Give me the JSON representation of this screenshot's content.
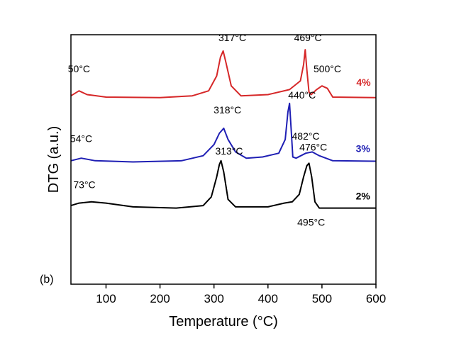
{
  "chart_data": {
    "type": "line",
    "xlabel": "Temperature (°C)",
    "ylabel": "DTG (a.u.)",
    "panel_label": "(b)",
    "xlim": [
      35,
      600
    ],
    "ylim": [
      0,
      10
    ],
    "x_ticks": [
      100,
      200,
      300,
      400,
      500,
      600
    ],
    "y_ticks_shown": false,
    "grid": false,
    "legend": "none",
    "series": [
      {
        "name": "4%",
        "color": "#d62728",
        "points": [
          [
            35,
            7.55
          ],
          [
            50,
            7.75
          ],
          [
            65,
            7.6
          ],
          [
            100,
            7.5
          ],
          [
            200,
            7.48
          ],
          [
            260,
            7.55
          ],
          [
            290,
            7.75
          ],
          [
            305,
            8.35
          ],
          [
            312,
            9.1
          ],
          [
            317,
            9.35
          ],
          [
            322,
            8.9
          ],
          [
            332,
            7.95
          ],
          [
            350,
            7.55
          ],
          [
            400,
            7.6
          ],
          [
            440,
            7.8
          ],
          [
            460,
            8.15
          ],
          [
            466,
            8.8
          ],
          [
            469,
            9.4
          ],
          [
            472,
            8.6
          ],
          [
            476,
            7.7
          ],
          [
            480,
            7.6
          ],
          [
            490,
            7.8
          ],
          [
            500,
            7.95
          ],
          [
            510,
            7.85
          ],
          [
            520,
            7.5
          ],
          [
            600,
            7.48
          ]
        ]
      },
      {
        "name": "3%",
        "color": "#1f1fb4",
        "points": [
          [
            35,
            4.95
          ],
          [
            54,
            5.05
          ],
          [
            80,
            4.95
          ],
          [
            150,
            4.9
          ],
          [
            240,
            4.95
          ],
          [
            280,
            5.15
          ],
          [
            300,
            5.6
          ],
          [
            310,
            6.05
          ],
          [
            318,
            6.25
          ],
          [
            326,
            5.8
          ],
          [
            340,
            5.3
          ],
          [
            360,
            5.05
          ],
          [
            390,
            5.1
          ],
          [
            420,
            5.25
          ],
          [
            432,
            5.8
          ],
          [
            437,
            6.9
          ],
          [
            440,
            7.25
          ],
          [
            443,
            6.2
          ],
          [
            446,
            5.1
          ],
          [
            452,
            5.05
          ],
          [
            470,
            5.25
          ],
          [
            482,
            5.3
          ],
          [
            495,
            5.15
          ],
          [
            520,
            4.95
          ],
          [
            600,
            4.93
          ]
        ]
      },
      {
        "name": "2%",
        "color": "#000000",
        "points": [
          [
            35,
            3.15
          ],
          [
            50,
            3.25
          ],
          [
            73,
            3.3
          ],
          [
            100,
            3.25
          ],
          [
            150,
            3.1
          ],
          [
            230,
            3.05
          ],
          [
            280,
            3.15
          ],
          [
            295,
            3.5
          ],
          [
            305,
            4.3
          ],
          [
            310,
            4.8
          ],
          [
            313,
            4.95
          ],
          [
            318,
            4.5
          ],
          [
            326,
            3.4
          ],
          [
            340,
            3.1
          ],
          [
            400,
            3.1
          ],
          [
            430,
            3.25
          ],
          [
            445,
            3.3
          ],
          [
            458,
            3.6
          ],
          [
            466,
            4.3
          ],
          [
            472,
            4.75
          ],
          [
            476,
            4.85
          ],
          [
            481,
            4.3
          ],
          [
            487,
            3.3
          ],
          [
            495,
            3.05
          ],
          [
            520,
            3.05
          ],
          [
            600,
            3.05
          ]
        ]
      }
    ],
    "annotations": [
      {
        "text": "50°C",
        "x": 50,
        "y": 8.5
      },
      {
        "text": "317°C",
        "x": 334,
        "y": 9.75
      },
      {
        "text": "469°C",
        "x": 474,
        "y": 9.75
      },
      {
        "text": "500°C",
        "x": 510,
        "y": 8.5
      },
      {
        "text": "4%",
        "x": 577,
        "y": 7.95,
        "series": "4%"
      },
      {
        "text": "54°C",
        "x": 54,
        "y": 5.7
      },
      {
        "text": "318°C",
        "x": 325,
        "y": 6.85
      },
      {
        "text": "440°C",
        "x": 463,
        "y": 7.45
      },
      {
        "text": "482°C",
        "x": 470,
        "y": 5.8
      },
      {
        "text": "3%",
        "x": 576,
        "y": 5.3,
        "series": "3%"
      },
      {
        "text": "73°C",
        "x": 60,
        "y": 3.85
      },
      {
        "text": "313°C",
        "x": 328,
        "y": 5.2
      },
      {
        "text": "476°C",
        "x": 484,
        "y": 5.35
      },
      {
        "text": "495°C",
        "x": 480,
        "y": 2.35
      },
      {
        "text": "2%",
        "x": 576,
        "y": 3.4,
        "series": "2%"
      }
    ]
  }
}
